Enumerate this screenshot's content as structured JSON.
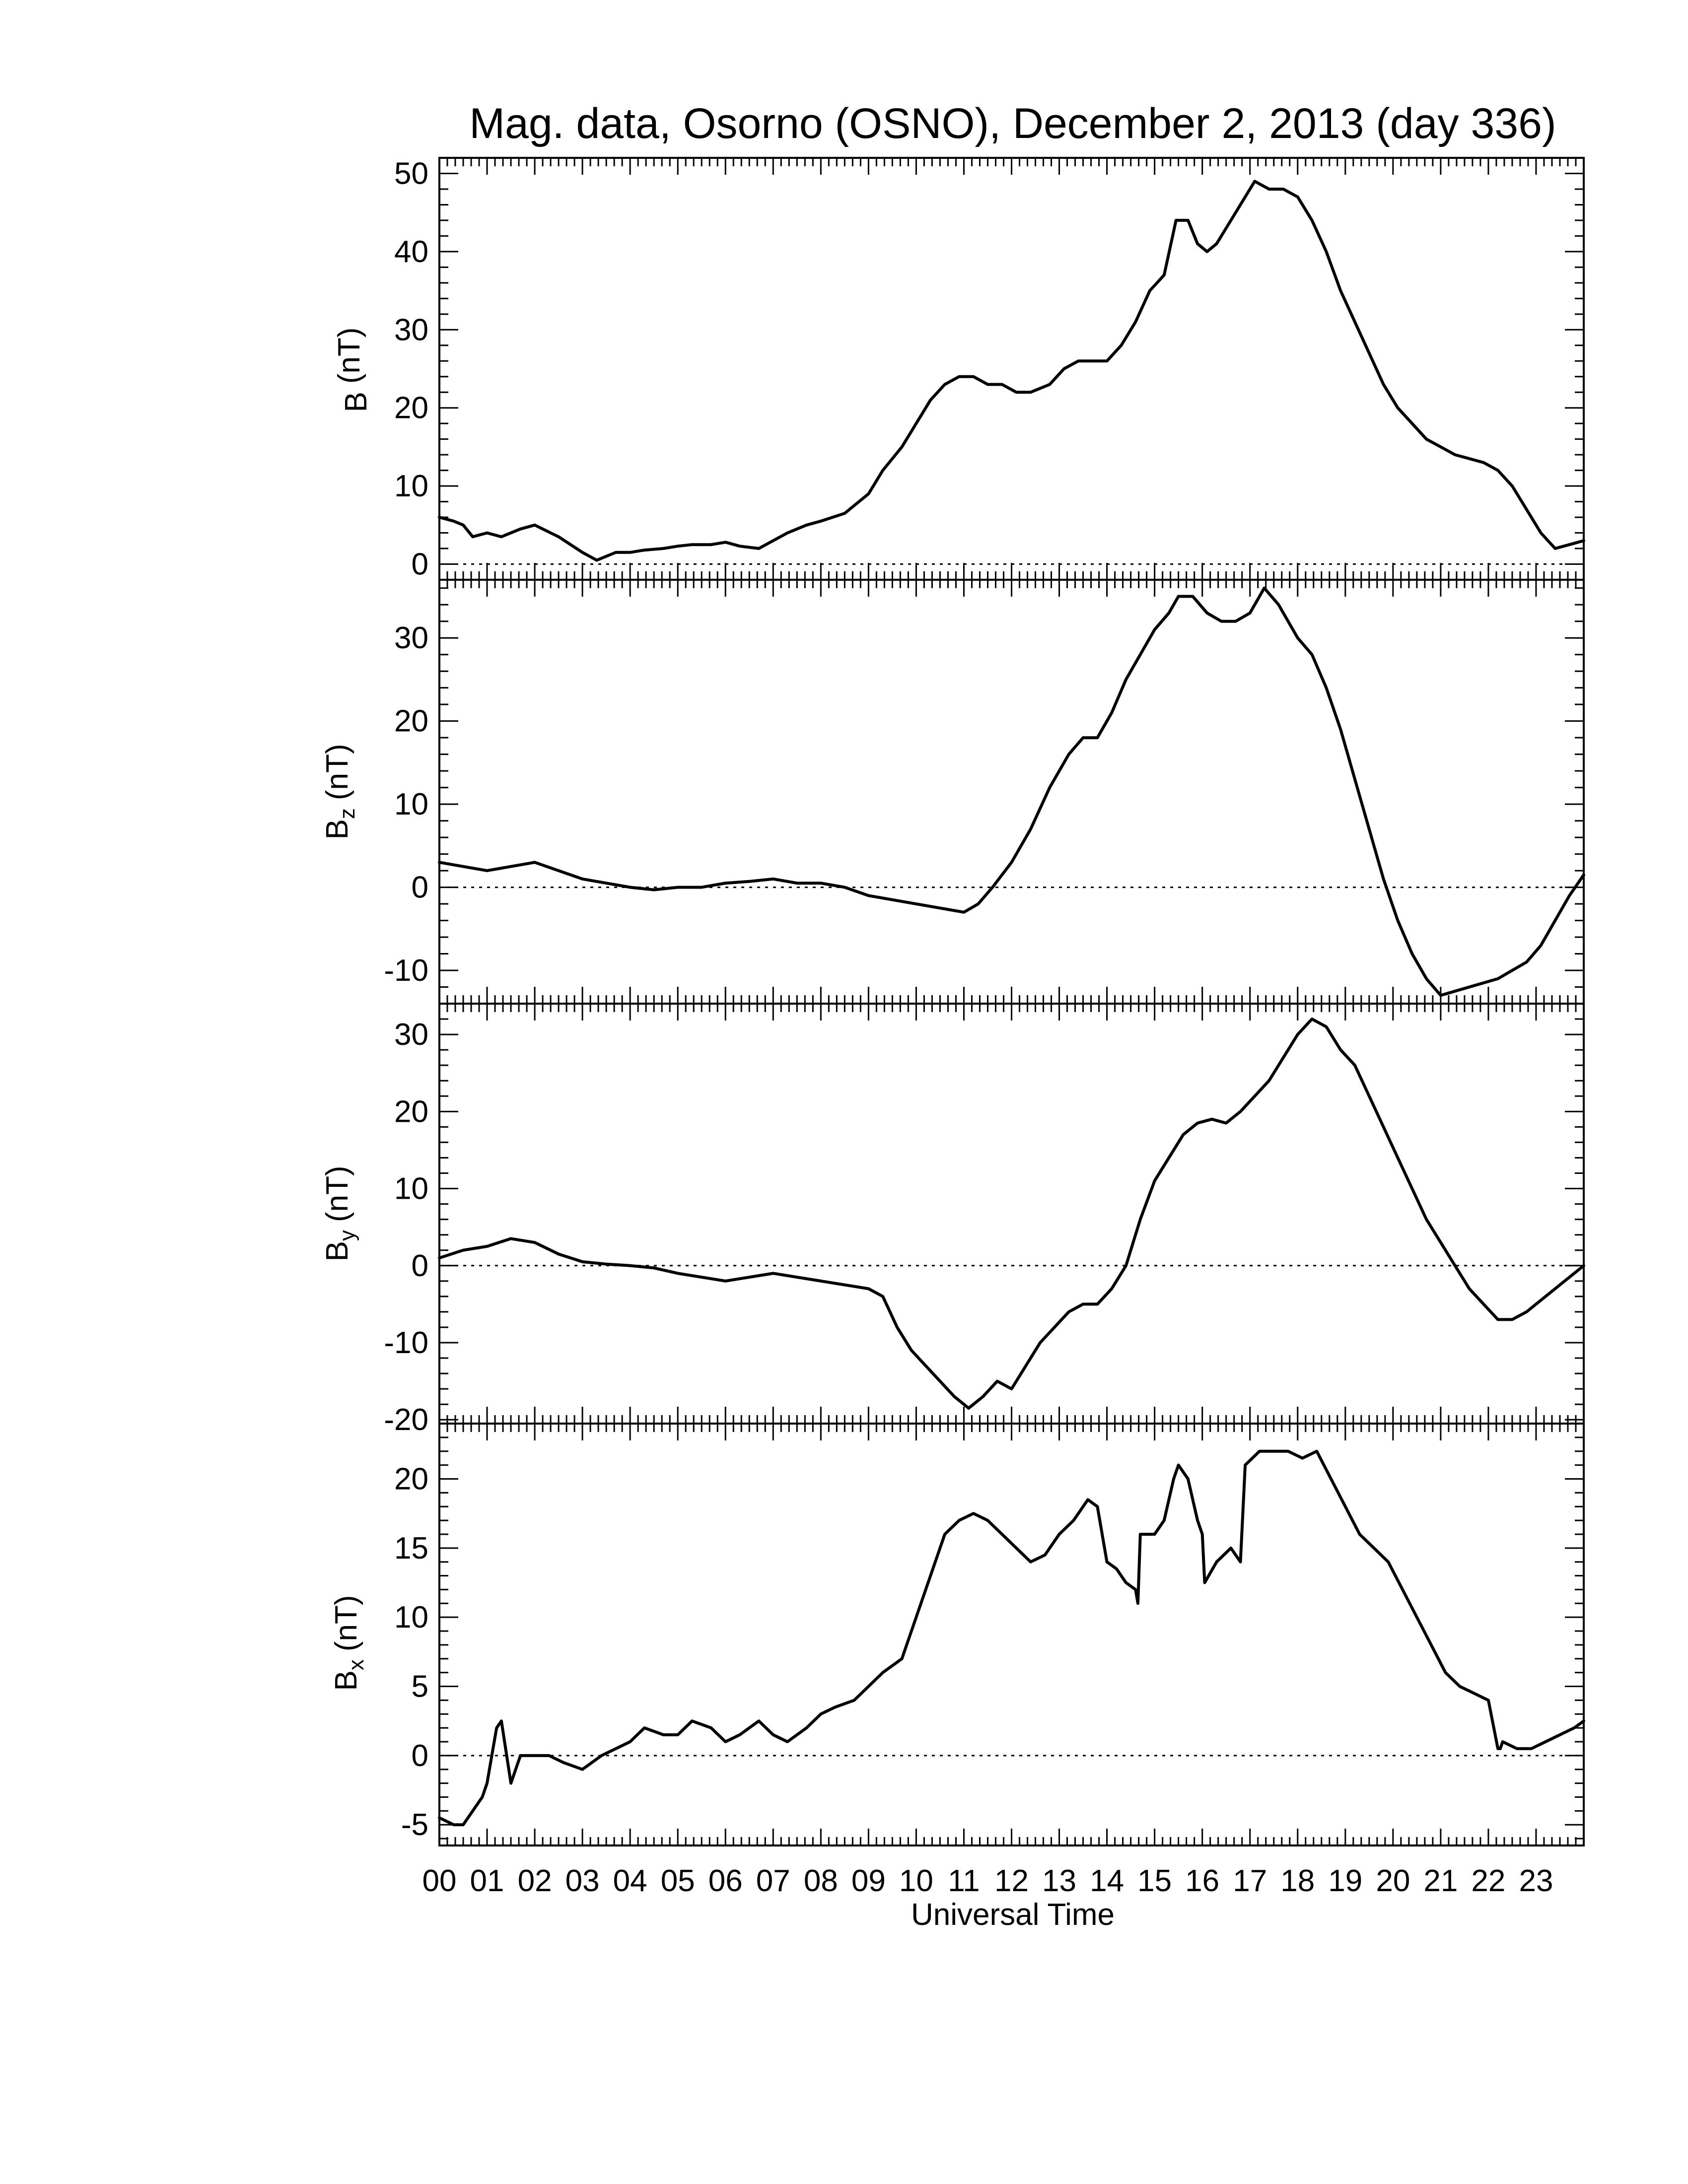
{
  "figure": {
    "title": "Mag. data, Osorno (OSNO), December 2, 2013 (day 336)",
    "xlabel": "Universal Time",
    "colors": {
      "line": "#000000",
      "zero_line": "#000000",
      "background": "#ffffff"
    }
  },
  "chart_data": [
    {
      "type": "line",
      "ylabel": "B (nT)",
      "ylabel_main": "B",
      "ylabel_sub": "",
      "ylabel_unit": "(nT)",
      "ylim": [
        -2,
        52
      ],
      "yticks": [
        0,
        10,
        20,
        30,
        40,
        50
      ],
      "xlim": [
        0,
        24
      ],
      "xticks": [
        "00",
        "01",
        "02",
        "03",
        "04",
        "05",
        "06",
        "07",
        "08",
        "09",
        "10",
        "11",
        "12",
        "13",
        "14",
        "15",
        "16",
        "17",
        "18",
        "19",
        "20",
        "21",
        "22",
        "23"
      ],
      "zero_line": true,
      "grid": false,
      "series": [
        {
          "x": [
            0,
            0.3,
            0.5,
            0.7,
            1.0,
            1.3,
            1.7,
            2.0,
            2.5,
            3.0,
            3.3,
            3.7,
            4.0,
            4.3,
            4.7,
            5.0,
            5.3,
            5.7,
            6.0,
            6.3,
            6.7,
            7.0,
            7.3,
            7.7,
            8.0,
            8.5,
            9.0,
            9.3,
            9.7,
            10.0,
            10.3,
            10.6,
            10.9,
            11.2,
            11.5,
            11.8,
            12.1,
            12.4,
            12.8,
            13.1,
            13.4,
            13.7,
            14.0,
            14.3,
            14.6,
            14.9,
            15.2,
            15.45,
            15.7,
            15.9,
            16.1,
            16.3,
            16.6,
            16.9,
            17.1,
            17.4,
            17.7,
            18.0,
            18.3,
            18.6,
            18.9,
            19.2,
            19.5,
            19.8,
            20.1,
            20.4,
            20.7,
            21.0,
            21.3,
            21.6,
            21.9,
            22.2,
            22.5,
            22.8,
            23.1,
            23.4,
            23.7,
            24.0
          ],
          "y": [
            6,
            5.5,
            5,
            3.5,
            4,
            3.5,
            4.5,
            5,
            3.5,
            1.5,
            0.5,
            1.5,
            1.5,
            1.8,
            2,
            2.3,
            2.5,
            2.5,
            2.8,
            2.3,
            2,
            3,
            4,
            5,
            5.5,
            6.5,
            9,
            12,
            15,
            18,
            21,
            23,
            24,
            24,
            23,
            23,
            22,
            22,
            23,
            25,
            26,
            26,
            26,
            28,
            31,
            35,
            37,
            44,
            44,
            41,
            40,
            41,
            44,
            47,
            49,
            48,
            48,
            47,
            44,
            40,
            35,
            31,
            27,
            23,
            20,
            18,
            16,
            15,
            14,
            13.5,
            13,
            12,
            10,
            7,
            4,
            2,
            2.5,
            3
          ]
        }
      ]
    },
    {
      "type": "line",
      "ylabel": "Bz (nT)",
      "ylabel_main": "B",
      "ylabel_sub": "z",
      "ylabel_unit": "(nT)",
      "ylim": [
        -14,
        37
      ],
      "yticks": [
        -10,
        0,
        10,
        20,
        30
      ],
      "xlim": [
        0,
        24
      ],
      "xticks": [
        "00",
        "01",
        "02",
        "03",
        "04",
        "05",
        "06",
        "07",
        "08",
        "09",
        "10",
        "11",
        "12",
        "13",
        "14",
        "15",
        "16",
        "17",
        "18",
        "19",
        "20",
        "21",
        "22",
        "23"
      ],
      "zero_line": true,
      "grid": false,
      "series": [
        {
          "x": [
            0,
            0.5,
            1.0,
            1.5,
            2.0,
            2.5,
            3.0,
            3.5,
            4.0,
            4.5,
            5.0,
            5.5,
            6.0,
            6.5,
            7.0,
            7.5,
            8.0,
            8.5,
            9.0,
            9.5,
            10.0,
            10.5,
            11.0,
            11.3,
            11.6,
            12.0,
            12.4,
            12.8,
            13.2,
            13.5,
            13.8,
            14.1,
            14.4,
            14.7,
            15.0,
            15.3,
            15.5,
            15.8,
            16.1,
            16.4,
            16.7,
            17.0,
            17.3,
            17.6,
            18.0,
            18.3,
            18.6,
            18.9,
            19.2,
            19.5,
            19.8,
            20.1,
            20.4,
            20.7,
            21.0,
            21.3,
            21.6,
            21.9,
            22.2,
            22.5,
            22.8,
            23.1,
            23.4,
            23.7,
            24.0
          ],
          "y": [
            3,
            2.5,
            2,
            2.5,
            3,
            2,
            1,
            0.5,
            0,
            -0.3,
            0,
            0,
            0.5,
            0.7,
            1,
            0.5,
            0.5,
            0,
            -1,
            -1.5,
            -2,
            -2.5,
            -3,
            -2,
            0,
            3,
            7,
            12,
            16,
            18,
            18,
            21,
            25,
            28,
            31,
            33,
            35,
            35,
            33,
            32,
            32,
            33,
            36,
            34,
            30,
            28,
            24,
            19,
            13,
            7,
            1,
            -4,
            -8,
            -11,
            -13,
            -12.5,
            -12,
            -11.5,
            -11,
            -10,
            -9,
            -7,
            -4,
            -1,
            1.5
          ]
        }
      ]
    },
    {
      "type": "line",
      "ylabel": "By (nT)",
      "ylabel_main": "B",
      "ylabel_sub": "y",
      "ylabel_unit": "(nT)",
      "ylim": [
        -20.5,
        34
      ],
      "yticks": [
        -20,
        -10,
        0,
        10,
        20,
        30
      ],
      "xlim": [
        0,
        24
      ],
      "xticks": [
        "00",
        "01",
        "02",
        "03",
        "04",
        "05",
        "06",
        "07",
        "08",
        "09",
        "10",
        "11",
        "12",
        "13",
        "14",
        "15",
        "16",
        "17",
        "18",
        "19",
        "20",
        "21",
        "22",
        "23"
      ],
      "zero_line": true,
      "grid": false,
      "series": [
        {
          "x": [
            0,
            0.5,
            1.0,
            1.5,
            2.0,
            2.5,
            3.0,
            3.5,
            4.0,
            4.5,
            5.0,
            5.5,
            6.0,
            6.5,
            7.0,
            7.5,
            8.0,
            8.5,
            9.0,
            9.3,
            9.6,
            9.9,
            10.2,
            10.5,
            10.8,
            11.1,
            11.4,
            11.7,
            12.0,
            12.3,
            12.6,
            12.9,
            13.2,
            13.5,
            13.8,
            14.1,
            14.4,
            14.7,
            15.0,
            15.3,
            15.6,
            15.9,
            16.2,
            16.5,
            16.8,
            17.1,
            17.4,
            17.7,
            18.0,
            18.3,
            18.6,
            18.9,
            19.2,
            19.5,
            19.8,
            20.1,
            20.4,
            20.7,
            21.0,
            21.3,
            21.6,
            21.9,
            22.2,
            22.5,
            22.8,
            23.1,
            23.4,
            23.7,
            24.0
          ],
          "y": [
            1,
            2,
            2.5,
            3.5,
            3,
            1.5,
            0.5,
            0.2,
            0,
            -0.3,
            -1,
            -1.5,
            -2,
            -1.5,
            -1,
            -1.5,
            -2,
            -2.5,
            -3,
            -4,
            -8,
            -11,
            -13,
            -15,
            -17,
            -18.5,
            -17,
            -15,
            -16,
            -13,
            -10,
            -8,
            -6,
            -5,
            -5,
            -3,
            0,
            6,
            11,
            14,
            17,
            18.5,
            19,
            18.5,
            20,
            22,
            24,
            27,
            30,
            32,
            31,
            28,
            26,
            22,
            18,
            14,
            10,
            6,
            3,
            0,
            -3,
            -5,
            -7,
            -7,
            -6,
            -4.5,
            -3,
            -1.5,
            0
          ]
        }
      ]
    },
    {
      "type": "line",
      "ylabel": "Bx (nT)",
      "ylabel_main": "B",
      "ylabel_sub": "x",
      "ylabel_unit": "(nT)",
      "ylim": [
        -6.5,
        24
      ],
      "yticks": [
        -5,
        0,
        5,
        10,
        15,
        20
      ],
      "xlim": [
        0,
        24
      ],
      "xticks": [
        "00",
        "01",
        "02",
        "03",
        "04",
        "05",
        "06",
        "07",
        "08",
        "09",
        "10",
        "11",
        "12",
        "13",
        "14",
        "15",
        "16",
        "17",
        "18",
        "19",
        "20",
        "21",
        "22",
        "23"
      ],
      "zero_line": true,
      "grid": false,
      "series": [
        {
          "x": [
            0,
            0.3,
            0.5,
            0.7,
            0.9,
            1.0,
            1.1,
            1.2,
            1.3,
            1.5,
            1.7,
            2.0,
            2.3,
            2.6,
            3.0,
            3.4,
            3.7,
            4.0,
            4.3,
            4.7,
            5.0,
            5.3,
            5.7,
            6.0,
            6.3,
            6.7,
            7.0,
            7.3,
            7.7,
            8.0,
            8.3,
            8.7,
            9.0,
            9.3,
            9.7,
            10.0,
            10.3,
            10.6,
            10.9,
            11.2,
            11.5,
            11.8,
            12.1,
            12.4,
            12.7,
            13.0,
            13.3,
            13.6,
            13.8,
            14.0,
            14.2,
            14.4,
            14.6,
            14.65,
            14.7,
            15.0,
            15.2,
            15.4,
            15.5,
            15.7,
            15.9,
            16.0,
            16.05,
            16.3,
            16.6,
            16.8,
            16.9,
            17.2,
            17.5,
            17.8,
            18.1,
            18.4,
            18.7,
            19.0,
            19.3,
            19.6,
            19.9,
            20.2,
            20.5,
            20.8,
            21.1,
            21.4,
            21.7,
            22.0,
            22.2,
            22.25,
            22.3,
            22.6,
            22.9,
            23.2,
            23.5,
            23.8,
            24.0
          ],
          "y": [
            -4.5,
            -5,
            -5,
            -4,
            -3,
            -2,
            0,
            2,
            2.5,
            -2,
            0,
            0,
            0,
            -0.5,
            -1,
            0,
            0.5,
            1,
            2,
            1.5,
            1.5,
            2.5,
            2,
            1,
            1.5,
            2.5,
            1.5,
            1,
            2,
            3,
            3.5,
            4,
            5,
            6,
            7,
            10,
            13,
            16,
            17,
            17.5,
            17,
            16,
            15,
            14,
            14.5,
            16,
            17,
            18.5,
            18,
            14,
            13.5,
            12.5,
            12,
            11,
            16,
            16,
            17,
            20,
            21,
            20,
            17,
            16,
            12.5,
            14,
            15,
            14,
            21,
            22,
            22,
            22,
            21.5,
            22,
            20,
            18,
            16,
            15,
            14,
            12,
            10,
            8,
            6,
            5,
            4.5,
            4,
            0.5,
            0.5,
            1,
            0.5,
            0.5,
            1,
            1.5,
            2,
            2.5
          ]
        }
      ]
    }
  ]
}
